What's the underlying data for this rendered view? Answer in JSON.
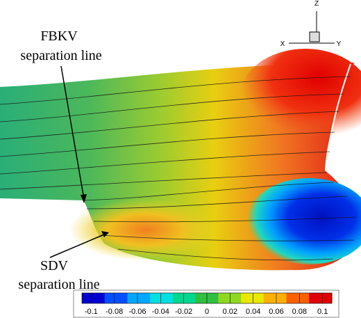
{
  "annotations": [
    {
      "name": "FBKV",
      "text": "separation line"
    },
    {
      "name": "SDV",
      "text": "separation line"
    }
  ],
  "axes_triad": {
    "z": "Z",
    "x": "X",
    "y": "Y"
  },
  "colorbar": {
    "range": [
      -0.108,
      0.108
    ],
    "ticks": [
      -0.1,
      -0.08,
      -0.06,
      -0.04,
      -0.02,
      0,
      0.02,
      0.04,
      0.06,
      0.08,
      0.1
    ],
    "colors": [
      "#0000d0",
      "#0050ff",
      "#00a8ff",
      "#00e0e0",
      "#00d890",
      "#30c040",
      "#90d820",
      "#e8e800",
      "#ffb000",
      "#ff6000",
      "#e00000"
    ]
  }
}
